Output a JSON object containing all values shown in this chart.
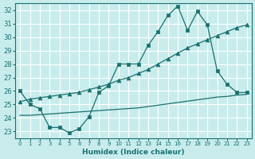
{
  "xlabel": "Humidex (Indice chaleur)",
  "ylabel": "",
  "xlim": [
    -0.5,
    23.5
  ],
  "ylim": [
    22.5,
    32.5
  ],
  "xticks": [
    0,
    1,
    2,
    3,
    4,
    5,
    6,
    7,
    8,
    9,
    10,
    11,
    12,
    13,
    14,
    15,
    16,
    17,
    18,
    19,
    20,
    21,
    22,
    23
  ],
  "yticks": [
    23,
    24,
    25,
    26,
    27,
    28,
    29,
    30,
    31,
    32
  ],
  "bg_color": "#c8ecec",
  "line_color": "#1a7070",
  "grid_color": "#ffffff",
  "series": [
    {
      "x": [
        0,
        1,
        2,
        3,
        4,
        5,
        6,
        7,
        8,
        9,
        10,
        11,
        12,
        13,
        14,
        15,
        16,
        17,
        18,
        19,
        20,
        21,
        22,
        23
      ],
      "y": [
        26.0,
        25.0,
        24.7,
        23.3,
        23.3,
        22.9,
        23.2,
        24.1,
        25.9,
        26.4,
        28.0,
        28.0,
        28.0,
        29.4,
        30.4,
        31.6,
        32.3,
        30.5,
        31.9,
        30.9,
        27.5,
        26.5,
        25.9,
        25.9
      ],
      "marker": "s",
      "markersize": 2.5,
      "linewidth": 0.9
    },
    {
      "x": [
        0,
        1,
        2,
        3,
        4,
        5,
        6,
        7,
        8,
        9,
        10,
        11,
        12,
        13,
        14,
        15,
        16,
        17,
        18,
        19,
        20,
        21,
        22,
        23
      ],
      "y": [
        25.2,
        25.4,
        25.5,
        25.6,
        25.7,
        25.8,
        25.9,
        26.1,
        26.3,
        26.5,
        26.8,
        27.0,
        27.3,
        27.6,
        28.0,
        28.4,
        28.8,
        29.2,
        29.5,
        29.8,
        30.1,
        30.4,
        30.7,
        30.9
      ],
      "marker": "^",
      "markersize": 3.5,
      "linewidth": 0.9
    },
    {
      "x": [
        0,
        1,
        2,
        3,
        4,
        5,
        6,
        7,
        8,
        9,
        10,
        11,
        12,
        13,
        14,
        15,
        16,
        17,
        18,
        19,
        20,
        21,
        22,
        23
      ],
      "y": [
        24.2,
        24.2,
        24.25,
        24.3,
        24.35,
        24.4,
        24.45,
        24.5,
        24.55,
        24.6,
        24.65,
        24.7,
        24.75,
        24.85,
        24.95,
        25.05,
        25.15,
        25.25,
        25.35,
        25.45,
        25.55,
        25.6,
        25.7,
        25.75
      ],
      "marker": null,
      "markersize": 0,
      "linewidth": 0.9
    }
  ]
}
